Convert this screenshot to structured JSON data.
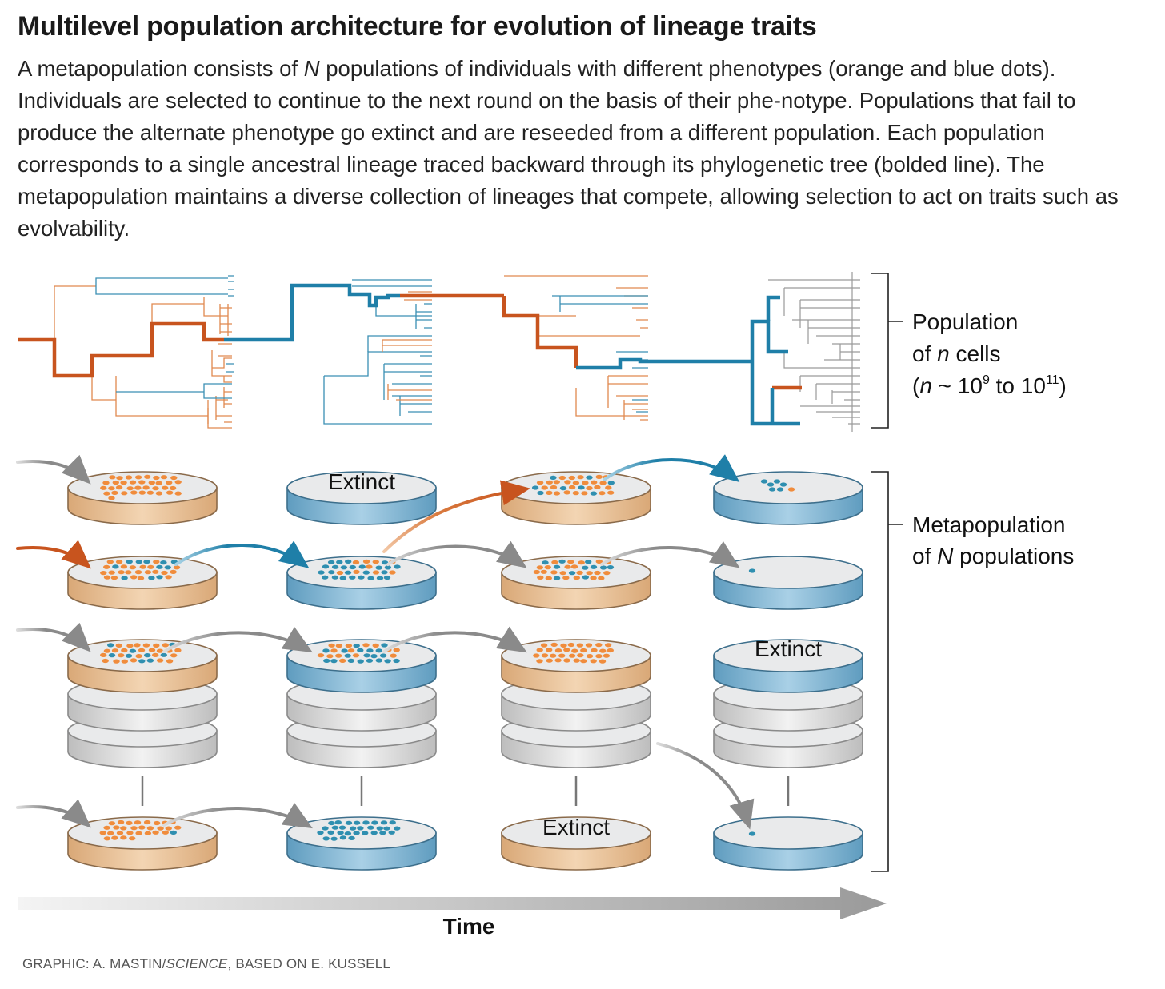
{
  "title": "Multilevel population architecture for evolution of lineage traits",
  "description": {
    "part1": "A metapopulation consists of ",
    "part2": "N",
    "part3": " populations of individuals with different phenotypes (orange and blue dots). Individuals are selected to continue to the next round on the basis of their phe-notype. Populations that fail to produce the alternate phenotype go extinct and are reseeded from a different population. Each population corresponds to a single ancestral lineage traced backward through its phylogenetic tree (bolded line). The metapopulation maintains a diverse collection of lineages that compete, allowing selection to act on traits such as evolvability."
  },
  "labels": {
    "population_line1": "Population",
    "population_line2_pre": "of ",
    "population_line2_var": "n",
    "population_line2_post": " cells",
    "population_line3_pre": "(",
    "population_line3_var": "n",
    "population_line3_mid": " ~ 10",
    "population_line3_sup1": "9",
    "population_line3_to": " to 10",
    "population_line3_sup2": "11",
    "population_line3_post": ")",
    "metapop_line1": "Metapopulation",
    "metapop_line2_pre": "of ",
    "metapop_line2_var": "N",
    "metapop_line2_post": " populations",
    "time": "Time",
    "extinct": "Extinct"
  },
  "credit": {
    "pre": "GRAPHIC: A. MASTIN/",
    "italic": "SCIENCE",
    "post": ", BASED ON E. KUSSELL"
  },
  "colors": {
    "orange": "#c8541e",
    "orange_dot": "#f08c3c",
    "blue": "#1f7fa8",
    "blue_dot": "#2f8fb0",
    "gray_arrow": "#8a8a8a",
    "dish_orange": "#e9c39a",
    "dish_blue": "#8dbcd6",
    "dish_gray": "#d9d9d9"
  }
}
